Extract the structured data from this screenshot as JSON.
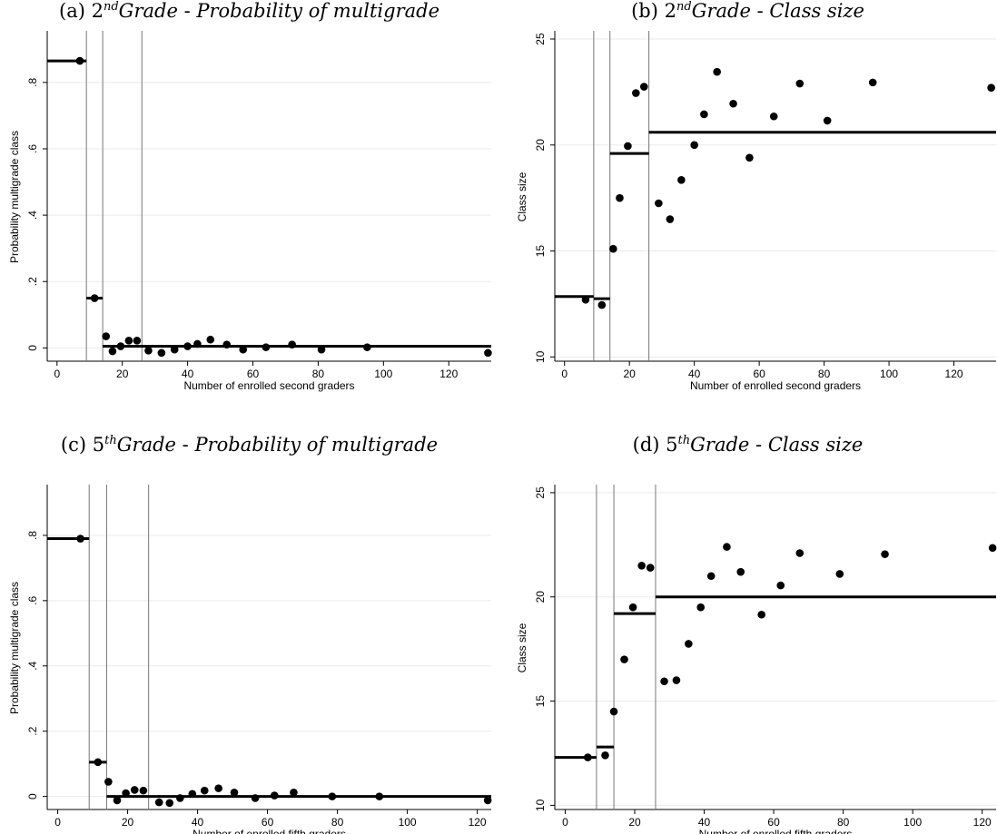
{
  "panels": [
    {
      "label": "(a)",
      "sup": "nd",
      "grade_prefix": "2",
      "grade_word": "Grade",
      "sep": "-",
      "subject": "Probability of multigrade"
    },
    {
      "label": "(b)",
      "sup": "nd",
      "grade_prefix": "2",
      "grade_word": "Grade",
      "sep": "-",
      "subject": "Class size"
    },
    {
      "label": "(c)",
      "sup": "th",
      "grade_prefix": "5",
      "grade_word": "Grade",
      "sep": "-",
      "subject": "Probability of multigrade"
    },
    {
      "label": "(d)",
      "sup": "th",
      "grade_prefix": "5",
      "grade_word": "Grade",
      "sep": "-",
      "subject": "Class size"
    }
  ],
  "chart_data": [
    {
      "type": "scatter",
      "title": "(a) 2nd Grade - Probability of multigrade",
      "xlabel": "Number of enrolled second graders",
      "ylabel": "Probability multigrade class",
      "xlim": [
        -3,
        133
      ],
      "ylim": [
        -0.04,
        0.95
      ],
      "xticks": [
        0,
        20,
        40,
        60,
        80,
        100,
        120
      ],
      "xtick_labels": [
        "0",
        "20",
        "40",
        "60",
        "80",
        "100",
        "120"
      ],
      "yticks": [
        0,
        0.2,
        0.4,
        0.6,
        0.8
      ],
      "ytick_labels": [
        "0",
        ".2",
        ".4",
        ".6",
        ".8"
      ],
      "grid": "horizontal",
      "vlines": [
        9,
        14,
        26
      ],
      "segments": [
        {
          "x": [
            -3,
            9
          ],
          "y": 0.865
        },
        {
          "x": [
            9,
            14
          ],
          "y": 0.15
        },
        {
          "x": [
            14,
            133
          ],
          "y": 0.005
        }
      ],
      "points": {
        "x": [
          7,
          11.5,
          15,
          17,
          19.5,
          22,
          24.5,
          28,
          32,
          36,
          40,
          43,
          47,
          52,
          57,
          64,
          72,
          81,
          95,
          132
        ],
        "y": [
          0.865,
          0.15,
          0.035,
          -0.01,
          0.005,
          0.022,
          0.022,
          -0.008,
          -0.015,
          -0.005,
          0.005,
          0.012,
          0.025,
          0.01,
          -0.005,
          0.002,
          0.01,
          -0.005,
          0.002,
          -0.015
        ]
      }
    },
    {
      "type": "scatter",
      "title": "(b) 2nd Grade - Class size",
      "xlabel": "Number of enrolled second graders",
      "ylabel": "Class size",
      "xlim": [
        -3,
        133
      ],
      "ylim": [
        9.8,
        25.3
      ],
      "xticks": [
        0,
        20,
        40,
        60,
        80,
        100,
        120
      ],
      "xtick_labels": [
        "0",
        "20",
        "40",
        "60",
        "80",
        "100",
        "120"
      ],
      "yticks": [
        10,
        15,
        20,
        25
      ],
      "ytick_labels": [
        "10",
        "15",
        "20",
        "25"
      ],
      "grid": "horizontal",
      "vlines": [
        9,
        14,
        26
      ],
      "segments": [
        {
          "x": [
            -3,
            9
          ],
          "y": 12.85
        },
        {
          "x": [
            9,
            14
          ],
          "y": 12.75
        },
        {
          "x": [
            14,
            26
          ],
          "y": 19.6
        },
        {
          "x": [
            26,
            133
          ],
          "y": 20.6
        }
      ],
      "points": {
        "x": [
          6.5,
          11.5,
          15,
          17,
          19.5,
          22,
          24.5,
          29,
          32.5,
          36,
          40,
          43,
          47,
          52,
          57,
          64.5,
          72.5,
          81,
          95,
          131.5
        ],
        "y": [
          12.7,
          12.45,
          15.1,
          17.5,
          19.95,
          22.45,
          22.75,
          17.25,
          16.5,
          18.35,
          20.0,
          21.45,
          23.45,
          21.95,
          19.4,
          21.35,
          22.9,
          21.15,
          22.95,
          22.7
        ]
      }
    },
    {
      "type": "scatter",
      "title": "(c) 5th Grade - Probability of multigrade",
      "xlabel": "Number of enrolled fifth graders",
      "ylabel": "Probability multigrade class",
      "xlim": [
        -3,
        124
      ],
      "ylim": [
        -0.04,
        0.95
      ],
      "xticks": [
        0,
        20,
        40,
        60,
        80,
        100,
        120
      ],
      "xtick_labels": [
        "0",
        "20",
        "40",
        "60",
        "80",
        "100",
        "120"
      ],
      "yticks": [
        0,
        0.2,
        0.4,
        0.6,
        0.8
      ],
      "ytick_labels": [
        "0",
        ".2",
        ".4",
        ".6",
        ".8"
      ],
      "grid": "horizontal",
      "vlines": [
        9,
        14,
        26
      ],
      "segments": [
        {
          "x": [
            -3,
            9
          ],
          "y": 0.79
        },
        {
          "x": [
            9,
            14
          ],
          "y": 0.105
        },
        {
          "x": [
            14,
            124
          ],
          "y": 0.0
        }
      ],
      "points": {
        "x": [
          6.5,
          11.5,
          14.5,
          17,
          19.5,
          22,
          24.5,
          29,
          32,
          35,
          38.5,
          42,
          46,
          50.5,
          56.5,
          62,
          67.5,
          78.5,
          92,
          123
        ],
        "y": [
          0.79,
          0.105,
          0.045,
          -0.012,
          0.01,
          0.02,
          0.018,
          -0.018,
          -0.02,
          -0.005,
          0.008,
          0.018,
          0.025,
          0.012,
          -0.005,
          0.003,
          0.012,
          0.0,
          0.0,
          -0.012
        ]
      }
    },
    {
      "type": "scatter",
      "title": "(d) 5th Grade - Class size",
      "xlabel": "Number of enrolled fifth graders",
      "ylabel": "Class size",
      "xlim": [
        -3,
        124
      ],
      "ylim": [
        9.8,
        25.3
      ],
      "xticks": [
        0,
        20,
        40,
        60,
        80,
        100,
        120
      ],
      "xtick_labels": [
        "0",
        "20",
        "40",
        "60",
        "80",
        "100",
        "120"
      ],
      "yticks": [
        10,
        15,
        20,
        25
      ],
      "ytick_labels": [
        "10",
        "15",
        "20",
        "25"
      ],
      "grid": "horizontal",
      "vlines": [
        9,
        14,
        26
      ],
      "segments": [
        {
          "x": [
            -3,
            9
          ],
          "y": 12.3
        },
        {
          "x": [
            9,
            14
          ],
          "y": 12.8
        },
        {
          "x": [
            14,
            26
          ],
          "y": 19.2
        },
        {
          "x": [
            26,
            124
          ],
          "y": 20.0
        }
      ],
      "points": {
        "x": [
          6.5,
          11.5,
          14,
          17,
          19.5,
          22,
          24.5,
          28.5,
          32,
          35.5,
          39,
          42,
          46.5,
          50.5,
          56.5,
          62,
          67.5,
          79,
          92,
          123
        ],
        "y": [
          12.3,
          12.4,
          14.5,
          17.0,
          19.5,
          21.5,
          21.4,
          15.95,
          16.0,
          17.75,
          19.5,
          21.0,
          22.4,
          21.2,
          19.15,
          20.55,
          22.1,
          21.1,
          22.05,
          22.35
        ]
      }
    }
  ]
}
